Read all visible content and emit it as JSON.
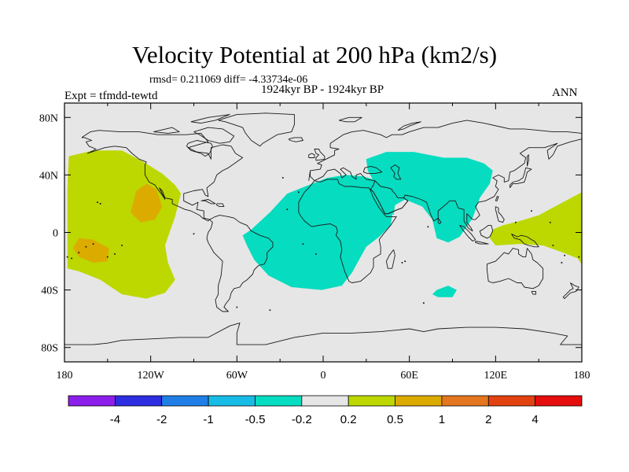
{
  "chart_data": {
    "type": "contour-map",
    "title": "Velocity Potential at 200 hPa (km2/s)",
    "stats": "rmsd= 0.211069 diff= -4.33734e-06",
    "period": "1924kyr BP - 1924kyr BP",
    "experiment": "Expt = tfmdd-tewtd",
    "season": "ANN",
    "lon_range": [
      -180,
      180
    ],
    "lat_range": [
      -90,
      90
    ],
    "lon_ticks": [
      {
        "value": -180,
        "label": "180"
      },
      {
        "value": -120,
        "label": "120W"
      },
      {
        "value": -60,
        "label": "60W"
      },
      {
        "value": 0,
        "label": "0"
      },
      {
        "value": 60,
        "label": "60E"
      },
      {
        "value": 120,
        "label": "120E"
      },
      {
        "value": 180,
        "label": "180"
      }
    ],
    "lat_ticks": [
      {
        "value": 80,
        "label": "80N"
      },
      {
        "value": 40,
        "label": "40N"
      },
      {
        "value": 0,
        "label": "0"
      },
      {
        "value": -40,
        "label": "40S"
      },
      {
        "value": -80,
        "label": "80S"
      }
    ],
    "colorbar": {
      "colors": [
        "#8c1eeb",
        "#2d2de1",
        "#1f7fe6",
        "#17bce6",
        "#06dcc0",
        "#e6e6e6",
        "#bcd800",
        "#dcab00",
        "#e3761f",
        "#e2420f",
        "#e60d0d"
      ],
      "labels": [
        "-4",
        "-2",
        "-1",
        "-0.5",
        "-0.2",
        "0.2",
        "0.5",
        "1",
        "2",
        "4"
      ]
    },
    "regions": [
      {
        "name": "pacific-positive",
        "level": "0.2 to 0.5",
        "color": "#bcd800",
        "lonlat": [
          [
            -177,
            53
          ],
          [
            -160,
            57
          ],
          [
            -140,
            57
          ],
          [
            -125,
            49
          ],
          [
            -112,
            41
          ],
          [
            -103,
            33
          ],
          [
            -99,
            27
          ],
          [
            -103,
            11
          ],
          [
            -110,
            -9
          ],
          [
            -108,
            -21
          ],
          [
            -103,
            -33
          ],
          [
            -110,
            -42
          ],
          [
            -123,
            -46
          ],
          [
            -140,
            -43
          ],
          [
            -155,
            -33
          ],
          [
            -170,
            -27
          ],
          [
            -178,
            -25
          ],
          [
            -178,
            0
          ],
          [
            -178,
            30
          ]
        ]
      },
      {
        "name": "pacific-high-north",
        "level": "0.5 to 1",
        "color": "#dcab00",
        "lonlat": [
          [
            -130,
            29
          ],
          [
            -123,
            34
          ],
          [
            -116,
            30
          ],
          [
            -112,
            18
          ],
          [
            -117,
            9
          ],
          [
            -127,
            7
          ],
          [
            -134,
            14
          ]
        ]
      },
      {
        "name": "pacific-high-south",
        "level": "0.5 to 1",
        "color": "#dcab00",
        "lonlat": [
          [
            -170,
            -4
          ],
          [
            -160,
            -5
          ],
          [
            -149,
            -11
          ],
          [
            -150,
            -20
          ],
          [
            -160,
            -21
          ],
          [
            -170,
            -17
          ],
          [
            -174,
            -11
          ]
        ]
      },
      {
        "name": "africa-atlantic-negative",
        "level": "-0.5 to -0.2",
        "color": "#06dcc0",
        "lonlat": [
          [
            -50,
            2
          ],
          [
            -37,
            14
          ],
          [
            -25,
            27
          ],
          [
            -10,
            33
          ],
          [
            3,
            38
          ],
          [
            16,
            40
          ],
          [
            28,
            39
          ],
          [
            38,
            36
          ],
          [
            46,
            27
          ],
          [
            49,
            18
          ],
          [
            47,
            5
          ],
          [
            39,
            -3
          ],
          [
            30,
            -10
          ],
          [
            20,
            -28
          ],
          [
            13,
            -37
          ],
          [
            -1,
            -40
          ],
          [
            -22,
            -38
          ],
          [
            -38,
            -30
          ],
          [
            -48,
            -19
          ],
          [
            -53,
            -9
          ],
          [
            -56,
            -2
          ]
        ]
      },
      {
        "name": "asia-negative",
        "level": "-0.5 to -0.2",
        "color": "#06dcc0",
        "lonlat": [
          [
            30,
            51
          ],
          [
            44,
            56
          ],
          [
            63,
            56
          ],
          [
            84,
            52
          ],
          [
            100,
            52
          ],
          [
            112,
            48
          ],
          [
            118,
            43
          ],
          [
            116,
            34
          ],
          [
            109,
            24
          ],
          [
            104,
            10
          ],
          [
            95,
            -3
          ],
          [
            87,
            -7
          ],
          [
            79,
            -4
          ],
          [
            76,
            9
          ],
          [
            69,
            18
          ],
          [
            57,
            23
          ],
          [
            50,
            19
          ],
          [
            49,
            12
          ],
          [
            45,
            17
          ],
          [
            39,
            30
          ],
          [
            35,
            36
          ],
          [
            31,
            43
          ]
        ]
      },
      {
        "name": "indian-ocean-negative",
        "level": "-0.5 to -0.2",
        "color": "#06dcc0",
        "lonlat": [
          [
            79,
            -40
          ],
          [
            87,
            -37
          ],
          [
            93,
            -40
          ],
          [
            90,
            -45
          ],
          [
            80,
            -45
          ],
          [
            76,
            -43
          ]
        ]
      },
      {
        "name": "west-pacific-positive",
        "level": "0.2 to 0.5",
        "color": "#bcd800",
        "lonlat": [
          [
            180,
            28
          ],
          [
            165,
            20
          ],
          [
            150,
            12
          ],
          [
            137,
            8
          ],
          [
            125,
            5
          ],
          [
            118,
            2
          ],
          [
            116,
            -4
          ],
          [
            120,
            -9
          ],
          [
            137,
            -8
          ],
          [
            153,
            -9
          ],
          [
            167,
            -14
          ],
          [
            177,
            -18
          ],
          [
            180,
            -22
          ]
        ]
      }
    ]
  }
}
